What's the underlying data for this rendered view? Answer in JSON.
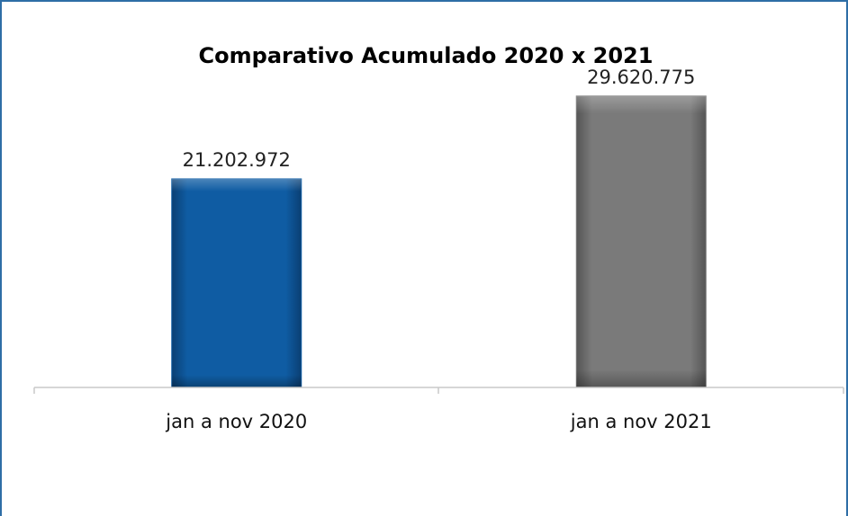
{
  "chart_data": {
    "type": "bar",
    "title": "Comparativo Acumulado 2020 x 2021",
    "categories": [
      "jan a nov 2020",
      "jan a nov 2021"
    ],
    "values": [
      21202972,
      29620775
    ],
    "data_labels": [
      "21.202.972",
      "29.620.775"
    ],
    "colors": [
      "#0f5ca3",
      "#7a7a7a"
    ],
    "xlabel": "",
    "ylabel": "",
    "ylim": [
      0,
      35000000
    ],
    "grid": false,
    "legend": "none"
  }
}
